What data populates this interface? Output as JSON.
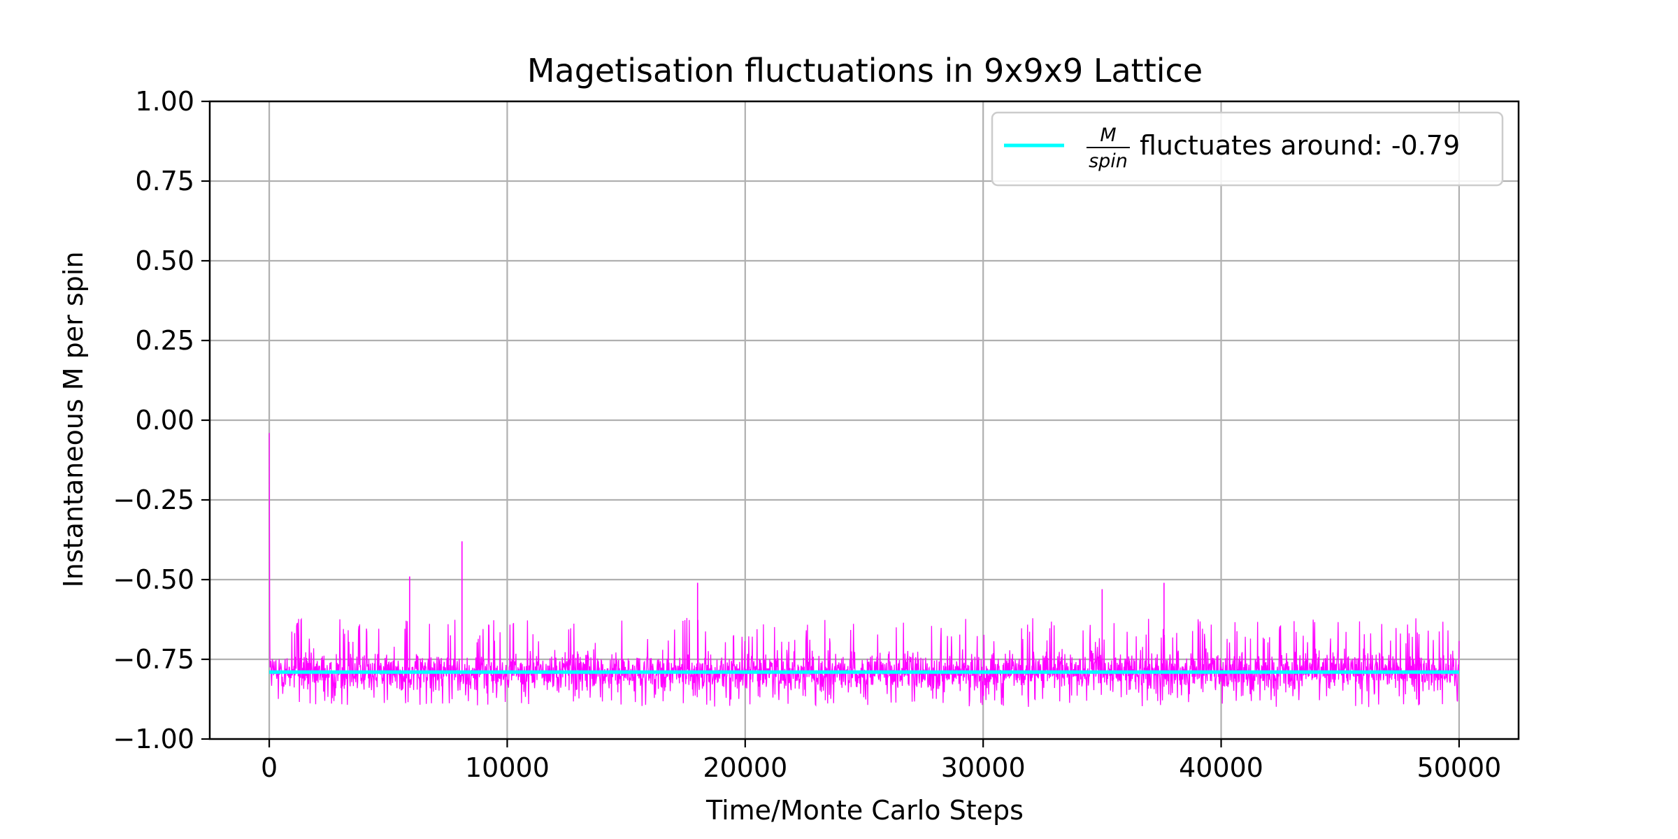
{
  "chart_data": {
    "type": "line",
    "title": "Magetisation fluctuations in 9x9x9 Lattice",
    "xlabel": "Time/Monte Carlo Steps",
    "ylabel": "Instantaneous M per spin",
    "xlim": [
      -2500,
      52500
    ],
    "ylim": [
      -1.0,
      1.0
    ],
    "x_ticks": [
      0,
      10000,
      20000,
      30000,
      40000,
      50000
    ],
    "x_tick_labels": [
      "0",
      "10000",
      "20000",
      "30000",
      "40000",
      "50000"
    ],
    "y_ticks": [
      1.0,
      0.75,
      0.5,
      0.25,
      0.0,
      -0.25,
      -0.5,
      -0.75,
      -1.0
    ],
    "y_tick_labels": [
      "1.00",
      "0.75",
      "0.50",
      "0.25",
      "0.00",
      "−0.25",
      "−0.50",
      "−0.75",
      "−1.00"
    ],
    "grid": true,
    "legend_position": "top-right",
    "series": [
      {
        "color": "#ff00ff",
        "x_range": [
          0,
          50000
        ],
        "typical_band": [
          -0.88,
          -0.68
        ],
        "baseline": -0.79,
        "initial_value": -0.04,
        "notable_spikes": [
          {
            "x": 5900,
            "y": -0.49
          },
          {
            "x": 8100,
            "y": -0.38
          },
          {
            "x": 18000,
            "y": -0.51
          },
          {
            "x": 35000,
            "y": -0.53
          },
          {
            "x": 37600,
            "y": -0.51
          }
        ]
      },
      {
        "name_fraction_numerator": "M",
        "name_fraction_denominator": "spin",
        "name_text": "fluctuates around: -0.79",
        "color": "#00ffff",
        "x": [
          0,
          50000
        ],
        "y": [
          -0.79,
          -0.79
        ]
      }
    ]
  }
}
